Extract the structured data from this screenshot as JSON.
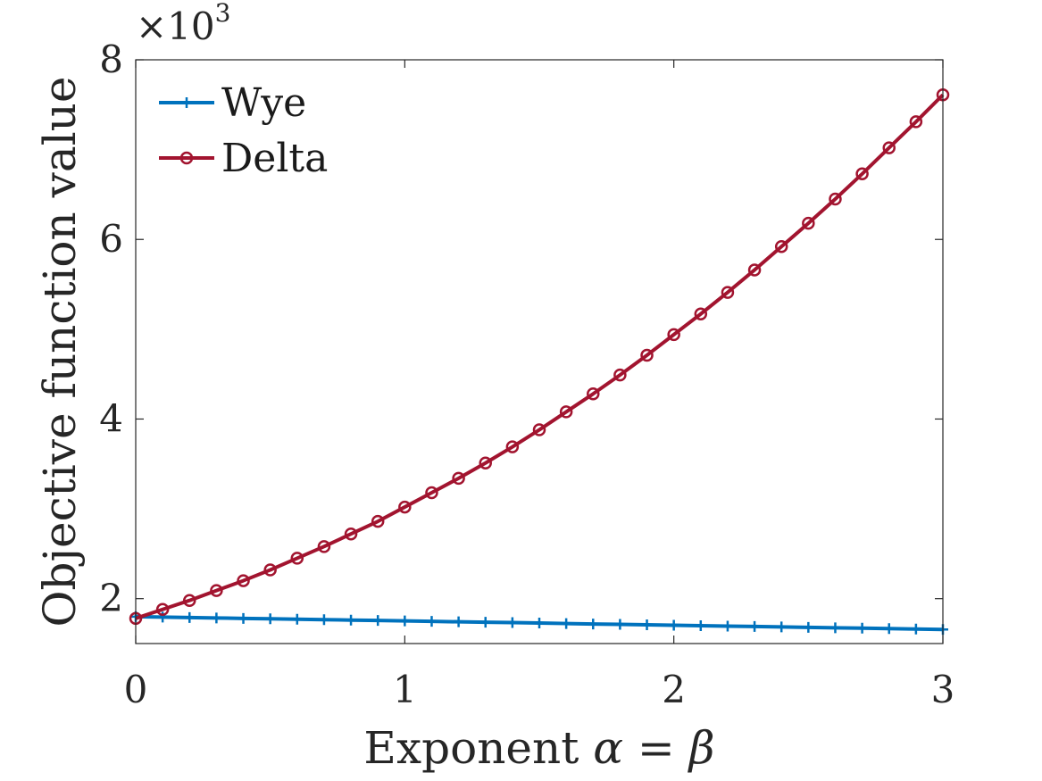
{
  "chart_data": {
    "type": "line",
    "xlabel_text": "Exponent ",
    "xlabel_math": "α = β",
    "ylabel": "Objective function value",
    "scale_factor": "×10",
    "scale_exponent": "3",
    "xlim": [
      0,
      3
    ],
    "ylim": [
      1.5,
      8
    ],
    "xticks": [
      0,
      1,
      2,
      3
    ],
    "yticks": [
      2,
      4,
      6,
      8
    ],
    "legend_position": "top-left",
    "grid": false,
    "series": [
      {
        "name": "Wye",
        "color": "#0072BD",
        "marker": "plus",
        "x": [
          0,
          0.1,
          0.2,
          0.3,
          0.4,
          0.5,
          0.6,
          0.7,
          0.8,
          0.9,
          1.0,
          1.1,
          1.2,
          1.3,
          1.4,
          1.5,
          1.6,
          1.7,
          1.8,
          1.9,
          2.0,
          2.1,
          2.2,
          2.3,
          2.4,
          2.5,
          2.6,
          2.7,
          2.8,
          2.9,
          3.0
        ],
        "y": [
          1.8,
          1.795,
          1.79,
          1.785,
          1.78,
          1.776,
          1.771,
          1.766,
          1.761,
          1.757,
          1.752,
          1.747,
          1.742,
          1.737,
          1.733,
          1.728,
          1.723,
          1.718,
          1.714,
          1.709,
          1.704,
          1.699,
          1.694,
          1.69,
          1.685,
          1.68,
          1.675,
          1.671,
          1.666,
          1.661,
          1.656
        ]
      },
      {
        "name": "Delta",
        "color": "#A2142F",
        "marker": "circle",
        "x": [
          0,
          0.1,
          0.2,
          0.3,
          0.4,
          0.5,
          0.6,
          0.7,
          0.8,
          0.9,
          1.0,
          1.1,
          1.2,
          1.3,
          1.4,
          1.5,
          1.6,
          1.7,
          1.8,
          1.9,
          2.0,
          2.1,
          2.2,
          2.3,
          2.4,
          2.5,
          2.6,
          2.7,
          2.8,
          2.9,
          3.0
        ],
        "y": [
          1.78,
          1.88,
          1.98,
          2.09,
          2.2,
          2.32,
          2.45,
          2.58,
          2.72,
          2.86,
          3.02,
          3.18,
          3.34,
          3.51,
          3.69,
          3.88,
          4.08,
          4.28,
          4.49,
          4.71,
          4.94,
          5.17,
          5.41,
          5.66,
          5.92,
          6.18,
          6.45,
          6.73,
          7.02,
          7.31,
          7.61
        ]
      }
    ]
  }
}
